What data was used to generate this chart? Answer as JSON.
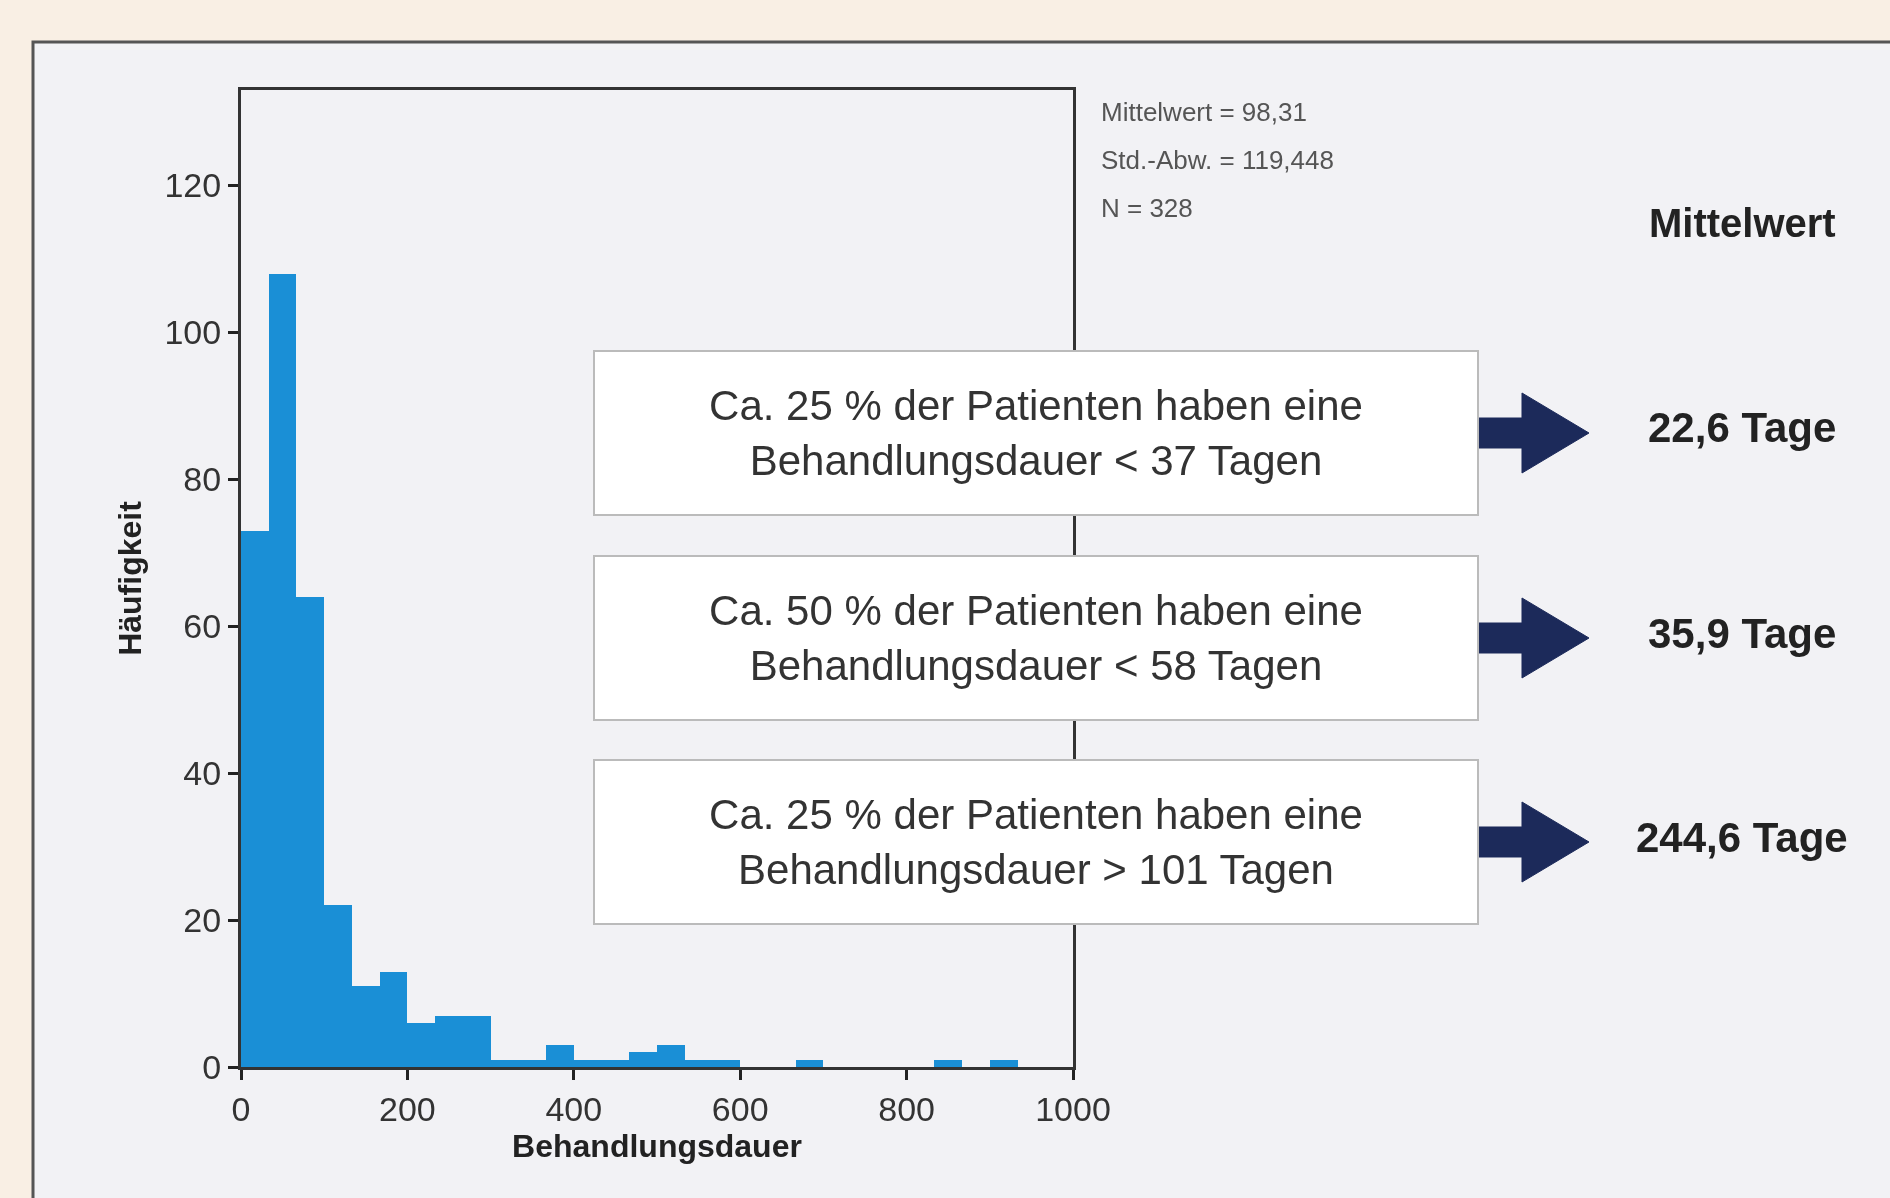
{
  "chart_data": {
    "type": "histogram",
    "xlabel": "Behandlungsdauer",
    "ylabel": "Häufigkeit",
    "bins": [
      0,
      33.33,
      66.67,
      100,
      133.33,
      166.67,
      200,
      233.33,
      266.67,
      300,
      333.33,
      366.67,
      400,
      433.33,
      466.67,
      500,
      533.33,
      566.67,
      600,
      633.33,
      666.67,
      700,
      733.33,
      766.67,
      800,
      833.33,
      866.67,
      900,
      933.33,
      966.67,
      1000
    ],
    "values": [
      73,
      108,
      64,
      22,
      11,
      13,
      6,
      7,
      7,
      1,
      1,
      3,
      1,
      1,
      2,
      3,
      1,
      1,
      0,
      0,
      1,
      0,
      0,
      0,
      0,
      1,
      0,
      1,
      0,
      0
    ],
    "color": "#1a8fd6",
    "xlim": [
      0,
      1000
    ],
    "ylim": [
      0,
      133
    ],
    "xticks": [
      0,
      200,
      400,
      600,
      800,
      1000
    ],
    "yticks": [
      0,
      20,
      40,
      60,
      80,
      100,
      120
    ],
    "grid": false,
    "annotations": [
      "Mittelwert = 98,31",
      "Std.-Abw. = 119,448",
      "N = 328",
      "Mittelwert",
      "Ca. 25 % der Patienten haben eine\nBehandlungsdauer < 37 Tagen",
      "Ca. 50 % der Patienten haben eine\nBehandlungsdauer < 58 Tagen",
      "Ca. 25 % der Patienten haben eine\nBehandlungsdauer > 101 Tagen",
      "22,6 Tage",
      "35,9 Tage",
      "244,6 Tage"
    ]
  }
}
